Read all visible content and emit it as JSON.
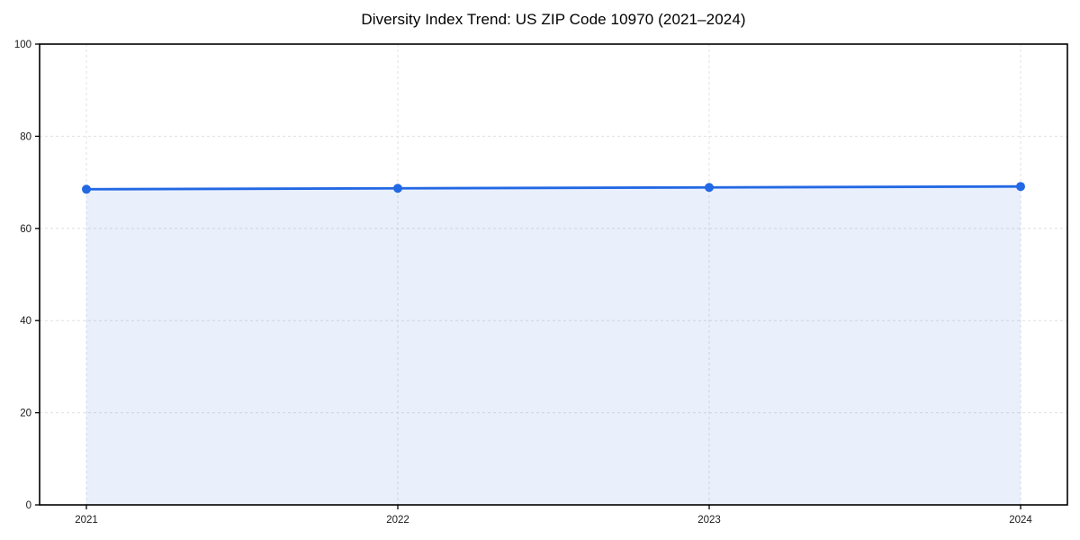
{
  "chart_data": {
    "type": "line",
    "title": "Diversity Index Trend: US ZIP Code 10970 (2021–2024)",
    "x": [
      "2021",
      "2022",
      "2023",
      "2024"
    ],
    "series": [
      {
        "name": "Diversity Index",
        "values": [
          68.5,
          68.7,
          68.9,
          69.1
        ]
      }
    ],
    "xlabel": "",
    "ylabel": "",
    "ylim": [
      0,
      100
    ],
    "yticks": [
      0,
      20,
      40,
      60,
      80,
      100
    ],
    "grid": true,
    "grid_style": "dashed",
    "legend_position": "none",
    "area_fill": true,
    "marker": "circle",
    "colors": {
      "line": "#2368e4",
      "marker": "#2368e4",
      "fill": "rgba(35, 104, 228, 0.10)",
      "grid": "#e0e0e0",
      "axis": "#000000",
      "tick_label": "#1a1a1a",
      "title": "#000000",
      "background": "#ffffff"
    }
  }
}
